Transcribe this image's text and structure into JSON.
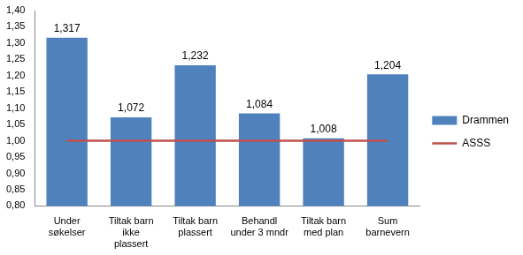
{
  "chart_data": {
    "type": "bar",
    "categories": [
      "Under søkelser",
      "Tiltak barn ikke plassert",
      "Tiltak barn plassert",
      "Behandl under 3 mndr",
      "Tiltak barn med plan",
      "Sum barnevern"
    ],
    "series": [
      {
        "name": "Drammen",
        "type": "bar",
        "color": "#4f81bd",
        "values": [
          1.317,
          1.072,
          1.232,
          1.084,
          1.008,
          1.204
        ],
        "value_labels": [
          "1,317",
          "1,072",
          "1,232",
          "1,084",
          "1,008",
          "1,204"
        ]
      },
      {
        "name": "ASSS",
        "type": "line",
        "color": "#c0504d",
        "marker": "none",
        "line_style": "solid",
        "values": [
          1,
          1,
          1,
          1,
          1,
          1
        ]
      }
    ],
    "ylim": [
      0.8,
      1.4
    ],
    "yticks": [
      {
        "value": 0.8,
        "label": "0,80"
      },
      {
        "value": 0.85,
        "label": "0,85"
      },
      {
        "value": 0.9,
        "label": "0,90"
      },
      {
        "value": 0.95,
        "label": "0,95"
      },
      {
        "value": 1,
        "label": "1,00"
      },
      {
        "value": 1.05,
        "label": "1,05"
      },
      {
        "value": 1.1,
        "label": "1,10"
      },
      {
        "value": 1.15,
        "label": "1,15"
      },
      {
        "value": 1.2,
        "label": "1,20"
      },
      {
        "value": 1.25,
        "label": "1,25"
      },
      {
        "value": 1.3,
        "label": "1,30"
      },
      {
        "value": 1.35,
        "label": "1,35"
      },
      {
        "value": 1.4,
        "label": "1,40"
      }
    ],
    "grid": false,
    "legend": "right",
    "data_labels": true
  }
}
